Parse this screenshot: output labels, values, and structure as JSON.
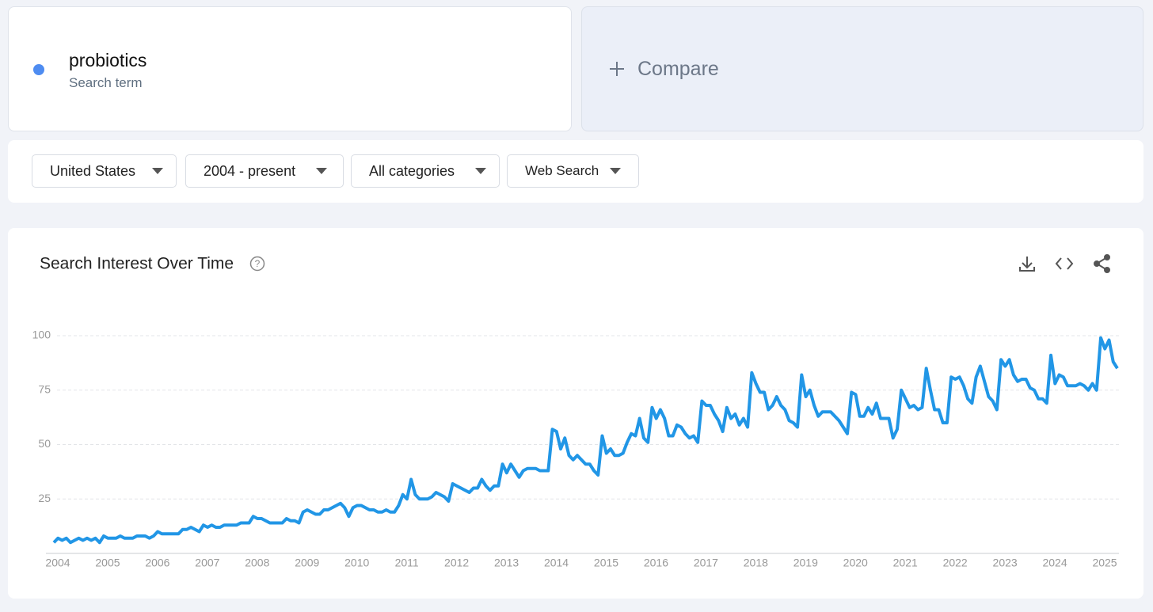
{
  "search_term": {
    "name": "probiotics",
    "subtitle": "Search term"
  },
  "compare": "Compare",
  "filters": [
    "United States",
    "2004 - present",
    "All categories",
    "Web Search"
  ],
  "chart_data": {
    "type": "line",
    "title": "Search Interest Over Time",
    "categories": [
      "2004",
      null,
      null,
      null,
      null,
      null,
      null,
      null,
      null,
      null,
      null,
      null,
      "2005",
      null,
      null,
      null,
      null,
      null,
      null,
      null,
      null,
      null,
      null,
      null,
      "2006",
      null,
      null,
      null,
      null,
      null,
      null,
      null,
      null,
      null,
      null,
      null,
      "2007",
      null,
      null,
      null,
      null,
      null,
      null,
      null,
      null,
      null,
      null,
      null,
      "2008",
      null,
      null,
      null,
      null,
      null,
      null,
      null,
      null,
      null,
      null,
      null,
      "2009",
      null,
      null,
      null,
      null,
      null,
      null,
      null,
      null,
      null,
      null,
      null,
      "2010",
      null,
      null,
      null,
      null,
      null,
      null,
      null,
      null,
      null,
      null,
      null,
      "2011",
      null,
      null,
      null,
      null,
      null,
      null,
      null,
      null,
      null,
      null,
      null,
      "2012",
      null,
      null,
      null,
      null,
      null,
      null,
      null,
      null,
      null,
      null,
      null,
      "2013",
      null,
      null,
      null,
      null,
      null,
      null,
      null,
      null,
      null,
      null,
      null,
      "2014",
      null,
      null,
      null,
      null,
      null,
      null,
      null,
      null,
      null,
      null,
      null,
      "2015",
      null,
      null,
      null,
      null,
      null,
      null,
      null,
      null,
      null,
      null,
      null,
      "2016",
      null,
      null,
      null,
      null,
      null,
      null,
      null,
      null,
      null,
      null,
      null,
      "2017",
      null,
      null,
      null,
      null,
      null,
      null,
      null,
      null,
      null,
      null,
      null,
      "2018",
      null,
      null,
      null,
      null,
      null,
      null,
      null,
      null,
      null,
      null,
      null,
      "2019",
      null,
      null,
      null,
      null,
      null,
      null,
      null,
      null,
      null,
      null,
      null,
      "2020",
      null,
      null,
      null,
      null,
      null,
      null,
      null,
      null,
      null,
      null,
      null,
      "2021",
      null,
      null,
      null,
      null,
      null,
      null,
      null,
      null,
      null,
      null,
      null,
      "2022",
      null,
      null,
      null,
      null,
      null,
      null,
      null,
      null,
      null,
      null,
      null,
      "2023",
      null,
      null,
      null,
      null,
      null,
      null,
      null,
      null,
      null,
      null,
      null,
      "2024",
      null,
      null,
      null,
      null,
      null,
      null,
      null,
      null,
      null,
      null,
      null,
      "2025",
      null,
      null,
      null,
      null
    ],
    "series": [
      {
        "name": "probiotics",
        "color": "#2196e6",
        "values": [
          5,
          7,
          6,
          7,
          5,
          6,
          7,
          6,
          7,
          6,
          7,
          5,
          8,
          7,
          7,
          7,
          8,
          7,
          7,
          7,
          8,
          8,
          8,
          7,
          8,
          10,
          9,
          9,
          9,
          9,
          9,
          11,
          11,
          12,
          11,
          10,
          13,
          12,
          13,
          12,
          12,
          13,
          13,
          13,
          13,
          14,
          14,
          14,
          17,
          16,
          16,
          15,
          14,
          14,
          14,
          14,
          16,
          15,
          15,
          14,
          19,
          20,
          19,
          18,
          18,
          20,
          20,
          21,
          22,
          23,
          21,
          17,
          21,
          22,
          22,
          21,
          20,
          20,
          19,
          19,
          20,
          19,
          19,
          22,
          27,
          25,
          34,
          27,
          25,
          25,
          25,
          26,
          28,
          27,
          26,
          24,
          32,
          31,
          30,
          29,
          28,
          30,
          30,
          34,
          31,
          29,
          31,
          31,
          41,
          37,
          41,
          38,
          35,
          38,
          39,
          39,
          39,
          38,
          38,
          38,
          57,
          56,
          48,
          53,
          45,
          43,
          45,
          43,
          41,
          41,
          38,
          36,
          54,
          46,
          48,
          45,
          45,
          46,
          51,
          55,
          54,
          62,
          53,
          51,
          67,
          62,
          66,
          62,
          54,
          54,
          59,
          58,
          55,
          53,
          54,
          51,
          70,
          68,
          68,
          64,
          61,
          56,
          67,
          62,
          64,
          59,
          62,
          58,
          83,
          78,
          74,
          74,
          66,
          68,
          72,
          68,
          66,
          61,
          60,
          58,
          82,
          72,
          75,
          68,
          63,
          65,
          65,
          65,
          63,
          61,
          58,
          55,
          74,
          73,
          63,
          63,
          67,
          64,
          69,
          62,
          62,
          62,
          53,
          57,
          75,
          71,
          67,
          68,
          66,
          67,
          85,
          75,
          66,
          66,
          60,
          60,
          81,
          80,
          81,
          77,
          71,
          69,
          81,
          86,
          79,
          72,
          70,
          66,
          89,
          86,
          89,
          82,
          79,
          80,
          80,
          76,
          75,
          71,
          71,
          69,
          91,
          78,
          82,
          81,
          77,
          77,
          77,
          78,
          77,
          75,
          78,
          75,
          99,
          94,
          98,
          88,
          85
        ]
      }
    ],
    "ylim": [
      0,
      100
    ],
    "yticks": [
      25,
      50,
      75,
      100
    ],
    "grid": true
  }
}
